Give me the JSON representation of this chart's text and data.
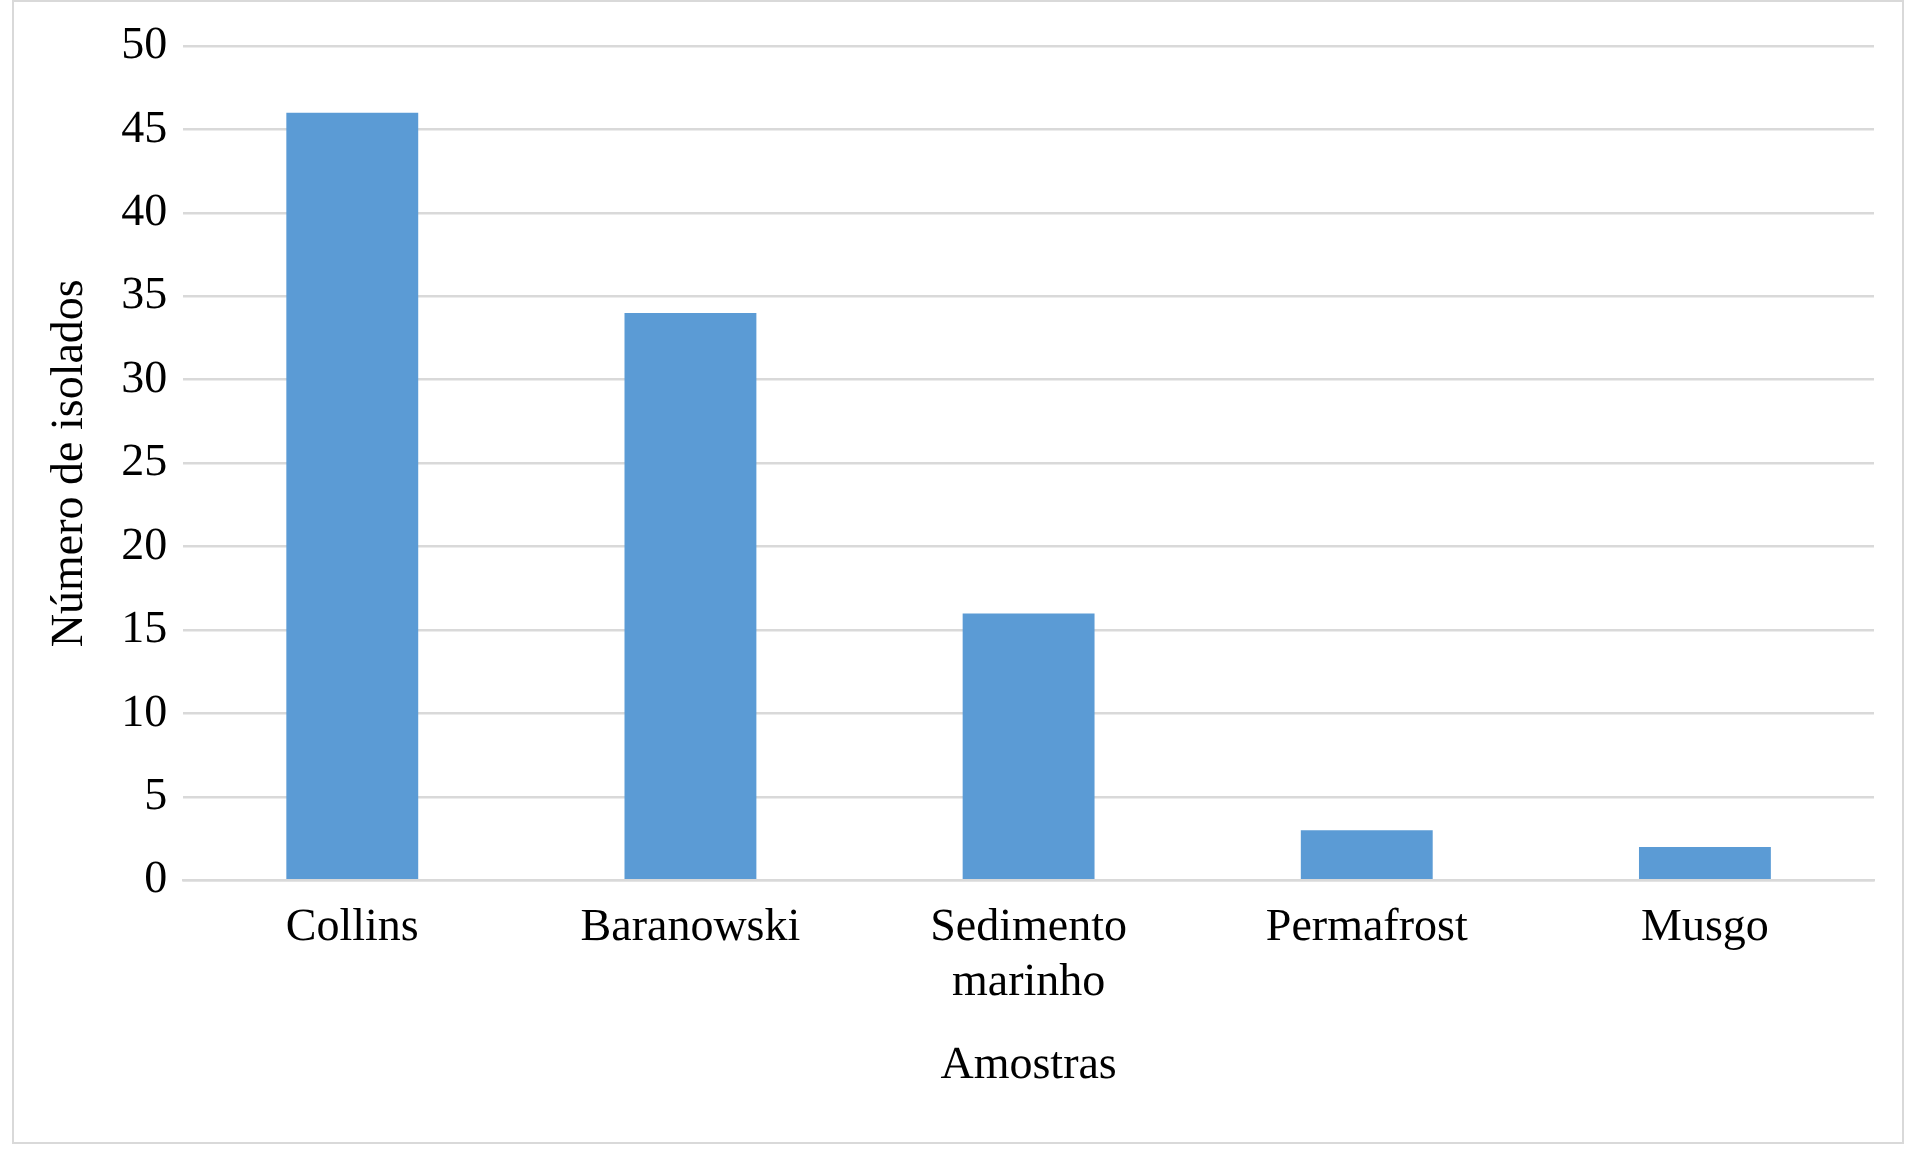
{
  "chart_data": {
    "type": "bar",
    "xlabel": "Amostras",
    "ylabel": "Número de isolados",
    "categories": [
      "Collins",
      "Baranowski",
      "Sedimento marinho",
      "Permafrost",
      "Musgo"
    ],
    "values": [
      46,
      34,
      16,
      3,
      2
    ],
    "color": "#5b9bd5",
    "ylim": [
      0,
      50
    ],
    "yticks": [
      0,
      5,
      10,
      15,
      20,
      25,
      30,
      35,
      40,
      45,
      50
    ],
    "grid": "y",
    "legend": false
  }
}
